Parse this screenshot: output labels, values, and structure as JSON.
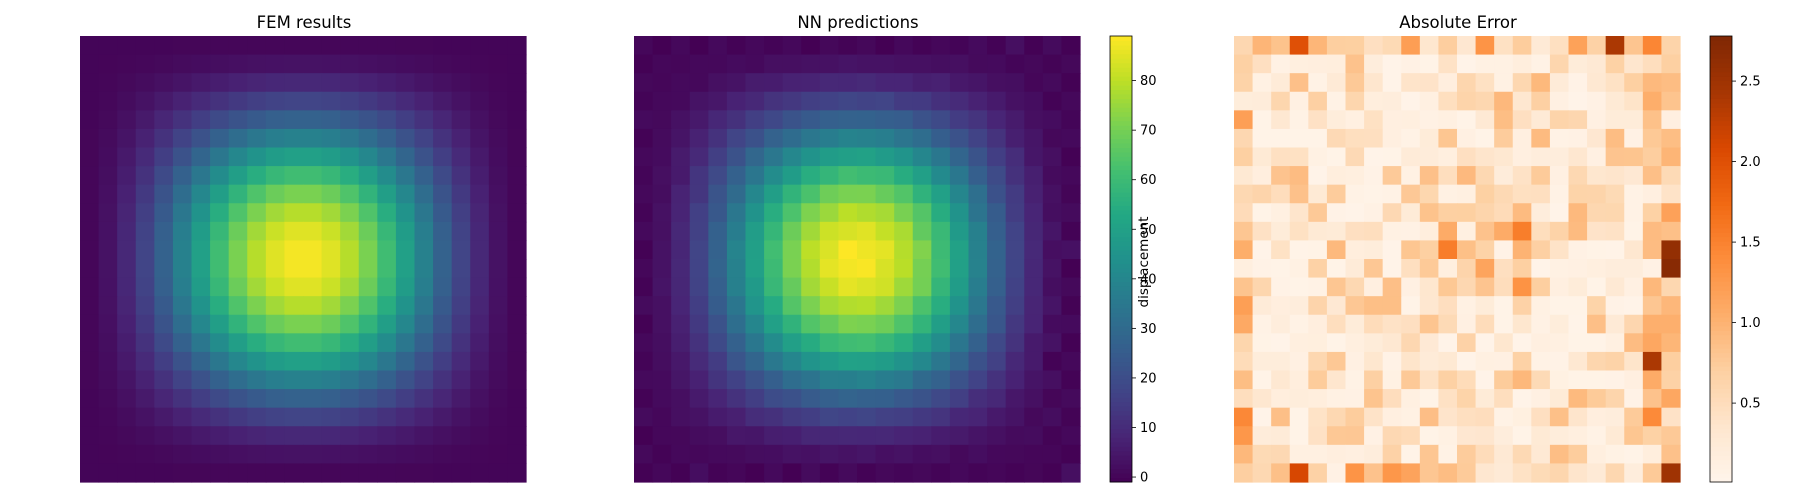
{
  "chart_data": [
    {
      "type": "heatmap",
      "title": "FEM results",
      "grid_size": [
        24,
        24
      ],
      "colormap": "viridis",
      "value_range": [
        -1,
        89
      ],
      "field_model": "u(i,j) = 88.5 * ((1 - cos(2*pi*x))/2) * ((1 - cos(2*pi*y))/2), x = (j+0.5)/24, y = (i+0.5)/24",
      "peak_value": 88.5,
      "axes_visible": false
    },
    {
      "type": "heatmap",
      "title": "NN predictions",
      "grid_size": [
        24,
        24
      ],
      "colormap": "viridis",
      "value_range": [
        -1,
        89
      ],
      "colorbar": {
        "label": "displacement",
        "ticks": [
          "0",
          "10",
          "20",
          "30",
          "40",
          "50",
          "60",
          "70",
          "80"
        ],
        "tick_values": [
          0,
          10,
          20,
          30,
          40,
          50,
          60,
          70,
          80
        ]
      },
      "axes_visible": false
    },
    {
      "type": "heatmap",
      "title": "Absolute Error",
      "grid_size": [
        24,
        24
      ],
      "colormap": "Oranges",
      "value_range": [
        0.01,
        2.78
      ],
      "colorbar": {
        "ticks": [
          "0.5",
          "1.0",
          "1.5",
          "2.0",
          "2.5"
        ],
        "tick_values": [
          0.5,
          1.0,
          1.5,
          2.0,
          2.5
        ]
      },
      "notable_cells": [
        {
          "row": 0,
          "col": 3,
          "value": 2.0
        },
        {
          "row": 0,
          "col": 20,
          "value": 2.4
        },
        {
          "row": 11,
          "col": 23,
          "value": 2.6
        },
        {
          "row": 12,
          "col": 23,
          "value": 2.7
        },
        {
          "row": 17,
          "col": 22,
          "value": 2.4
        },
        {
          "row": 23,
          "col": 23,
          "value": 2.5
        },
        {
          "row": 23,
          "col": 3,
          "value": 2.1
        }
      ],
      "axes_visible": false
    }
  ],
  "colors": {
    "viridis_low": "#440154",
    "viridis_high": "#fde725",
    "oranges_low": "#fff5eb",
    "oranges_high": "#7f2704"
  }
}
